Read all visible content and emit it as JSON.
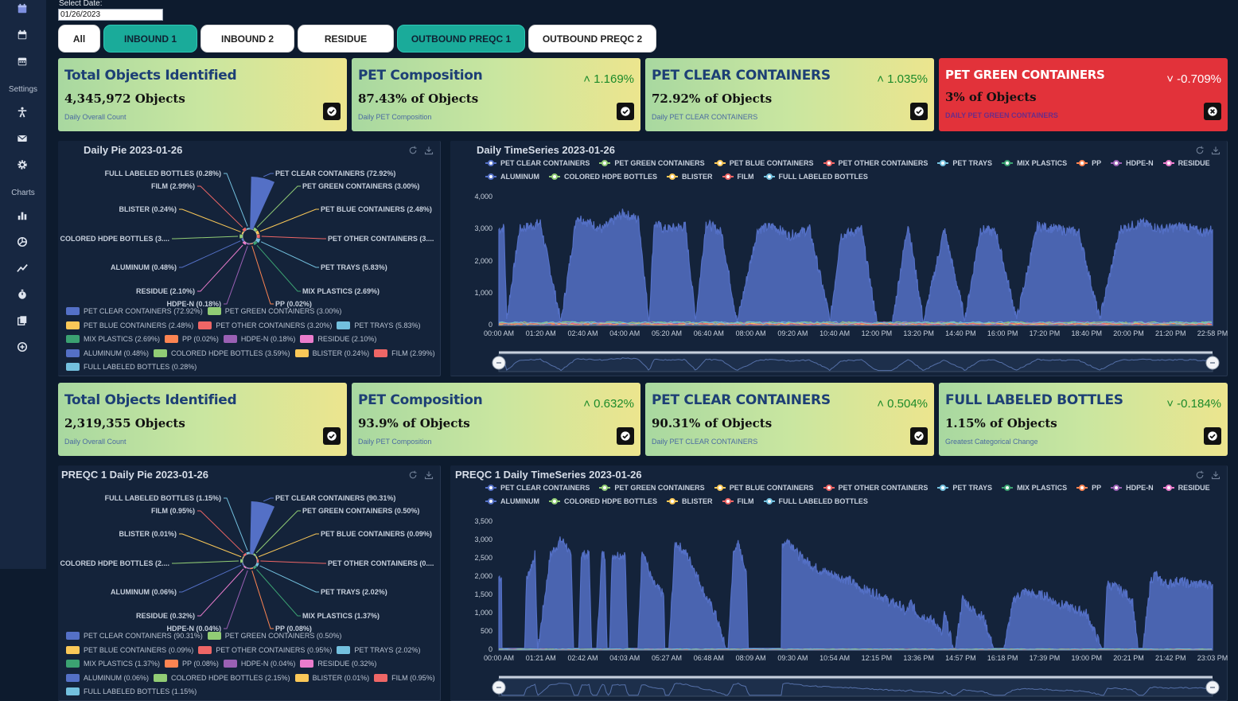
{
  "sidebar": {
    "sections": [
      {
        "label": "Settings"
      },
      {
        "label": "Charts"
      }
    ],
    "icons": [
      "calendar-icon",
      "calendar-icon",
      "calendar-icon",
      "accessibility-icon",
      "mail-icon",
      "gear-icon",
      "bar-chart-icon",
      "pie-chart-icon",
      "line-chart-icon",
      "stopwatch-icon",
      "copy-icon",
      "add-circle-icon"
    ]
  },
  "filters": {
    "date_label": "Select Date:",
    "date_value": "01/26/2023",
    "tabs": [
      {
        "label": "All",
        "active": false
      },
      {
        "label": "INBOUND 1",
        "active": true
      },
      {
        "label": "INBOUND 2",
        "active": false
      },
      {
        "label": "RESIDUE",
        "active": false
      },
      {
        "label": "OUTBOUND PREQC 1",
        "active": true
      },
      {
        "label": "OUTBOUND PREQC 2",
        "active": false
      }
    ]
  },
  "kpi_row1": [
    {
      "title": "Total Objects Identified",
      "value": "4,345,972 Objects",
      "subtitle": "Daily Overall Count",
      "delta": "",
      "status": "ok"
    },
    {
      "title": "PET Composition",
      "value": "87.43% of Objects",
      "subtitle": "Daily PET Composition",
      "delta": "1.169%",
      "direction": "up",
      "status": "ok"
    },
    {
      "title": "PET CLEAR CONTAINERS",
      "value": "72.92% of Objects",
      "subtitle": "Daily PET CLEAR CONTAINERS",
      "delta": "1.035%",
      "direction": "up",
      "status": "ok"
    },
    {
      "title": "PET GREEN CONTAINERS",
      "value": "3% of Objects",
      "subtitle": "DAILY PET GREEN CONTAINERS",
      "delta": "-0.709%",
      "direction": "down",
      "status": "alert"
    }
  ],
  "kpi_row2": [
    {
      "title": "Total Objects Identified",
      "value": "2,319,355 Objects",
      "subtitle": "Daily Overall Count",
      "delta": "",
      "status": "ok"
    },
    {
      "title": "PET Composition",
      "value": "93.9% of Objects",
      "subtitle": "Daily PET Composition",
      "delta": "0.632%",
      "direction": "up",
      "status": "ok"
    },
    {
      "title": "PET CLEAR CONTAINERS",
      "value": "90.31% of Objects",
      "subtitle": "Daily PET CLEAR CONTAINERS",
      "delta": "0.504%",
      "direction": "up",
      "status": "ok"
    },
    {
      "title": "FULL LABELED BOTTLES",
      "value": "1.15% of Objects",
      "subtitle": "Greatest Categorical Change",
      "delta": "-0.184%",
      "direction": "down",
      "status": "ok"
    }
  ],
  "colors": {
    "PET CLEAR CONTAINERS": "#5470c6",
    "PET GREEN CONTAINERS": "#91cc75",
    "PET BLUE CONTAINERS": "#fac858",
    "PET OTHER CONTAINERS": "#ee6666",
    "PET TRAYS": "#73c0de",
    "MIX PLASTICS": "#3ba272",
    "PP": "#fc8452",
    "HDPE-N": "#9a60b4",
    "RESIDUE": "#ea7ccc",
    "ALUMINUM": "#5470c6",
    "COLORED HDPE BOTTLES": "#91cc75",
    "BLISTER": "#fac858",
    "FILM": "#ee6666",
    "FULL LABELED BOTTLES": "#73c0de"
  },
  "chart_data": [
    {
      "type": "pie",
      "title": "Daily Pie 2023-01-26",
      "categories": [
        "PET CLEAR CONTAINERS",
        "PET GREEN CONTAINERS",
        "PET BLUE CONTAINERS",
        "PET OTHER CONTAINERS",
        "PET TRAYS",
        "MIX PLASTICS",
        "PP",
        "HDPE-N",
        "RESIDUE",
        "ALUMINUM",
        "COLORED HDPE BOTTLES",
        "BLISTER",
        "FILM",
        "FULL LABELED BOTTLES"
      ],
      "values": [
        72.92,
        3.0,
        2.48,
        3.2,
        5.83,
        2.69,
        0.02,
        0.18,
        2.1,
        0.48,
        3.59,
        0.24,
        2.99,
        0.28
      ],
      "labels": [
        "PET CLEAR CONTAINERS (72.92%)",
        "PET GREEN CONTAINERS (3.00%)",
        "PET BLUE CONTAINERS (2.48%)",
        "PET OTHER CONTAINERS (3....",
        "PET TRAYS (5.83%)",
        "MIX PLASTICS (2.69%)",
        "PP (0.02%)",
        "HDPE-N (0.18%)",
        "RESIDUE (2.10%)",
        "ALUMINUM (0.48%)",
        "COLORED HDPE BOTTLES (3....",
        "BLISTER (0.24%)",
        "FILM (2.99%)",
        "FULL LABELED BOTTLES (0.28%)"
      ],
      "legend": [
        "PET CLEAR CONTAINERS (72.92%)",
        "PET GREEN CONTAINERS (3.00%)",
        "PET BLUE CONTAINERS (2.48%)",
        "PET OTHER CONTAINERS (3.20%)",
        "PET TRAYS (5.83%)",
        "MIX PLASTICS (2.69%)",
        "PP (0.02%)",
        "HDPE-N (0.18%)",
        "RESIDUE (2.10%)",
        "ALUMINUM (0.48%)",
        "COLORED HDPE BOTTLES (3.59%)",
        "BLISTER (0.24%)",
        "FILM (2.99%)",
        "FULL LABELED BOTTLES (0.28%)"
      ],
      "legend_position": "bottom"
    },
    {
      "type": "line",
      "title": "Daily TimeSeries 2023-01-26",
      "series_names": [
        "PET CLEAR CONTAINERS",
        "PET GREEN CONTAINERS",
        "PET BLUE CONTAINERS",
        "PET OTHER CONTAINERS",
        "PET TRAYS",
        "MIX PLASTICS",
        "PP",
        "HDPE-N",
        "RESIDUE",
        "ALUMINUM",
        "COLORED HDPE BOTTLES",
        "BLISTER",
        "FILM",
        "FULL LABELED BOTTLES"
      ],
      "x_ticks": [
        "00:00 AM",
        "01:20 AM",
        "02:40 AM",
        "04:00 AM",
        "05:20 AM",
        "06:40 AM",
        "08:00 AM",
        "09:20 AM",
        "10:40 AM",
        "12:00 PM",
        "13:20 PM",
        "14:40 PM",
        "16:00 PM",
        "17:20 PM",
        "18:40 PM",
        "20:00 PM",
        "21:20 PM",
        "22:58 PM"
      ],
      "y_ticks": [
        "4,000",
        "3,000",
        "2,000",
        "1,000",
        "0"
      ],
      "ylim": [
        0,
        4000
      ],
      "main_series": {
        "name": "PET CLEAR CONTAINERS",
        "x_minutes": [
          0,
          10,
          15,
          40,
          80,
          120,
          150,
          200,
          240,
          270,
          290,
          300,
          320,
          360,
          380,
          400,
          430,
          460,
          500,
          530,
          560,
          600,
          640,
          660,
          700,
          730,
          760,
          790,
          820,
          860,
          900,
          930,
          960,
          1000,
          1040,
          1080,
          1120,
          1160,
          1200,
          1240,
          1280,
          1320,
          1360,
          1378
        ],
        "values": [
          3000,
          3050,
          200,
          3000,
          3200,
          100,
          3400,
          3000,
          3500,
          3300,
          100,
          3200,
          3000,
          3100,
          200,
          3200,
          2900,
          100,
          3000,
          3100,
          2800,
          3000,
          150,
          2800,
          3000,
          100,
          100,
          3200,
          100,
          3000,
          200,
          3000,
          2900,
          200,
          3100,
          3000,
          2900,
          200,
          3000,
          3200,
          3000,
          3100,
          2900,
          3000
        ]
      },
      "minor_series_level": 200,
      "legend_position": "top"
    },
    {
      "type": "pie",
      "title": "PREQC 1 Daily Pie 2023-01-26",
      "categories": [
        "PET CLEAR CONTAINERS",
        "PET GREEN CONTAINERS",
        "PET BLUE CONTAINERS",
        "PET OTHER CONTAINERS",
        "PET TRAYS",
        "MIX PLASTICS",
        "PP",
        "HDPE-N",
        "RESIDUE",
        "ALUMINUM",
        "COLORED HDPE BOTTLES",
        "BLISTER",
        "FILM",
        "FULL LABELED BOTTLES"
      ],
      "values": [
        90.31,
        0.5,
        0.09,
        0.95,
        2.02,
        1.37,
        0.08,
        0.04,
        0.32,
        0.06,
        2.15,
        0.01,
        0.95,
        1.15
      ],
      "labels": [
        "PET CLEAR CONTAINERS (90.31%)",
        "PET GREEN CONTAINERS (0.50%)",
        "PET BLUE CONTAINERS (0.09%)",
        "PET OTHER CONTAINERS (0....",
        "PET TRAYS (2.02%)",
        "MIX PLASTICS (1.37%)",
        "PP (0.08%)",
        "HDPE-N (0.04%)",
        "RESIDUE (0.32%)",
        "ALUMINUM (0.06%)",
        "COLORED HDPE BOTTLES (2....",
        "BLISTER (0.01%)",
        "FILM (0.95%)",
        "FULL LABELED BOTTLES (1.15%)"
      ],
      "legend": [
        "PET CLEAR CONTAINERS (90.31%)",
        "PET GREEN CONTAINERS (0.50%)",
        "PET BLUE CONTAINERS (0.09%)",
        "PET OTHER CONTAINERS (0.95%)",
        "PET TRAYS (2.02%)",
        "MIX PLASTICS (1.37%)",
        "PP (0.08%)",
        "HDPE-N (0.04%)",
        "RESIDUE (0.32%)",
        "ALUMINUM (0.06%)",
        "COLORED HDPE BOTTLES (2.15%)",
        "BLISTER (0.01%)",
        "FILM (0.95%)",
        "FULL LABELED BOTTLES (1.15%)"
      ],
      "legend_position": "bottom"
    },
    {
      "type": "line",
      "title": "PREQC 1 Daily TimeSeries 2023-01-26",
      "series_names": [
        "PET CLEAR CONTAINERS",
        "PET GREEN CONTAINERS",
        "PET BLUE CONTAINERS",
        "PET OTHER CONTAINERS",
        "PET TRAYS",
        "MIX PLASTICS",
        "PP",
        "HDPE-N",
        "RESIDUE",
        "ALUMINUM",
        "COLORED HDPE BOTTLES",
        "BLISTER",
        "FILM",
        "FULL LABELED BOTTLES"
      ],
      "x_ticks": [
        "00:00 AM",
        "01:21 AM",
        "02:42 AM",
        "04:03 AM",
        "05:27 AM",
        "06:48 AM",
        "08:09 AM",
        "09:30 AM",
        "10:54 AM",
        "12:15 PM",
        "13:36 PM",
        "14:57 PM",
        "16:18 PM",
        "17:39 PM",
        "19:00 PM",
        "20:21 PM",
        "21:42 PM",
        "23:03 PM"
      ],
      "y_ticks": [
        "3,500",
        "3,000",
        "2,500",
        "2,000",
        "1,500",
        "1,000",
        "500",
        "0"
      ],
      "ylim": [
        0,
        3500
      ],
      "main_series": {
        "name": "PET CLEAR CONTAINERS",
        "x_minutes": [
          0,
          5,
          6,
          50,
          54,
          56,
          70,
          75,
          76,
          100,
          110,
          120,
          130,
          140,
          145,
          155,
          160,
          175,
          180,
          190,
          200,
          206,
          210,
          215,
          220,
          245,
          250,
          270,
          278,
          283,
          290,
          300,
          320,
          322,
          330,
          342,
          346,
          365,
          380,
          400,
          420,
          440,
          445,
          455,
          461,
          462,
          470,
          480,
          484,
          500,
          520,
          548,
          550,
          560,
          575,
          580,
          600,
          620,
          640,
          660,
          680,
          700,
          720,
          740,
          760,
          780,
          790,
          800,
          810,
          830,
          850,
          860,
          865,
          870,
          882,
          886,
          900,
          920,
          940,
          960,
          980,
          1000,
          1020,
          1040,
          1060,
          1080,
          1100,
          1120,
          1140,
          1170,
          1175,
          1180,
          1200,
          1220,
          1230,
          1240,
          1250,
          1265,
          1275,
          1280,
          1300,
          1320,
          1340,
          1360,
          1385
        ],
        "values": [
          2000,
          2000,
          50,
          50,
          2000,
          2000,
          2600,
          50,
          50,
          2600,
          2800,
          3000,
          2900,
          2500,
          50,
          50,
          2600,
          2600,
          50,
          50,
          2600,
          2600,
          50,
          50,
          2600,
          2600,
          50,
          50,
          2800,
          2600,
          2200,
          1800,
          1500,
          50,
          50,
          2900,
          2900,
          2600,
          2200,
          1500,
          1000,
          50,
          50,
          2600,
          2800,
          3000,
          2600,
          2200,
          50,
          50,
          50,
          50,
          2900,
          3000,
          2800,
          2600,
          2400,
          2200,
          2100,
          2000,
          1900,
          1700,
          1600,
          1500,
          1300,
          1200,
          1000,
          1300,
          1000,
          900,
          700,
          400,
          1000,
          700,
          50,
          50,
          1400,
          1100,
          900,
          50,
          50,
          1400,
          1600,
          1500,
          1500,
          1300,
          1200,
          1100,
          1000,
          50,
          50,
          1800,
          1700,
          1500,
          1300,
          50,
          50,
          1900,
          2100,
          1900,
          1800,
          1900,
          1800,
          1800,
          1800
        ]
      },
      "minor_series_level": 60,
      "legend_position": "top"
    }
  ]
}
